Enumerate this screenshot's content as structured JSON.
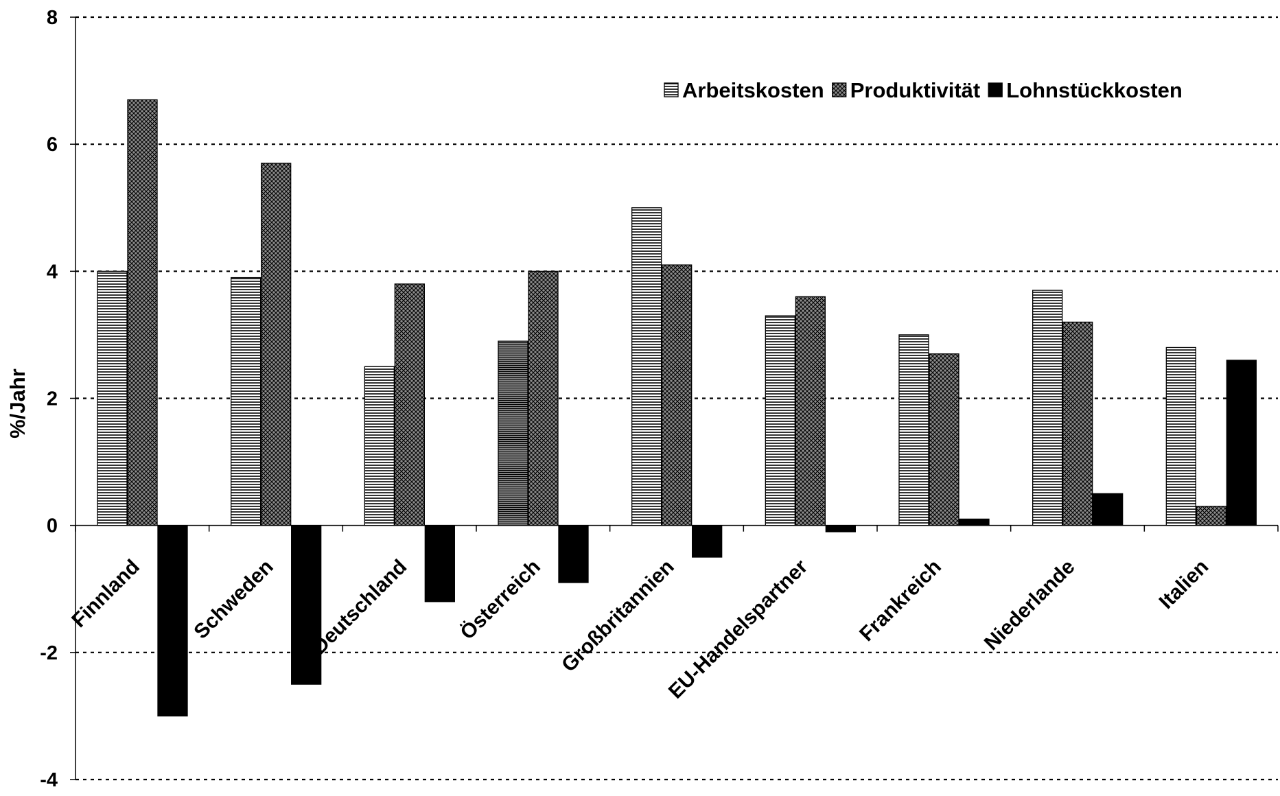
{
  "chart_data": {
    "type": "bar",
    "title": "",
    "xlabel": "",
    "ylabel": "%/Jahr",
    "ylim": [
      -4,
      8
    ],
    "yticks": [
      8,
      6,
      4,
      2,
      0,
      -2,
      -4
    ],
    "grid": true,
    "legend_position": "top-right",
    "categories": [
      "Finnland",
      "Schweden",
      "Deutschland",
      "Österreich",
      "Großbritannien",
      "EU-Handelspartner",
      "Frankreich",
      "Niederlande",
      "Italien"
    ],
    "series": [
      {
        "name": "Arbeitskosten",
        "pattern": "horizontal-stripes",
        "values": [
          4.0,
          3.9,
          2.5,
          2.9,
          5.0,
          3.3,
          3.0,
          3.7,
          2.8
        ]
      },
      {
        "name": "Produktivität",
        "pattern": "crosshatch",
        "values": [
          6.7,
          5.7,
          3.8,
          4.0,
          4.1,
          3.6,
          2.7,
          3.2,
          0.3
        ]
      },
      {
        "name": "Lohnstückkosten",
        "pattern": "solid",
        "color": "#000000",
        "values": [
          -3.0,
          -2.5,
          -1.2,
          -0.9,
          -0.5,
          -0.1,
          0.1,
          0.5,
          2.6
        ]
      }
    ]
  }
}
